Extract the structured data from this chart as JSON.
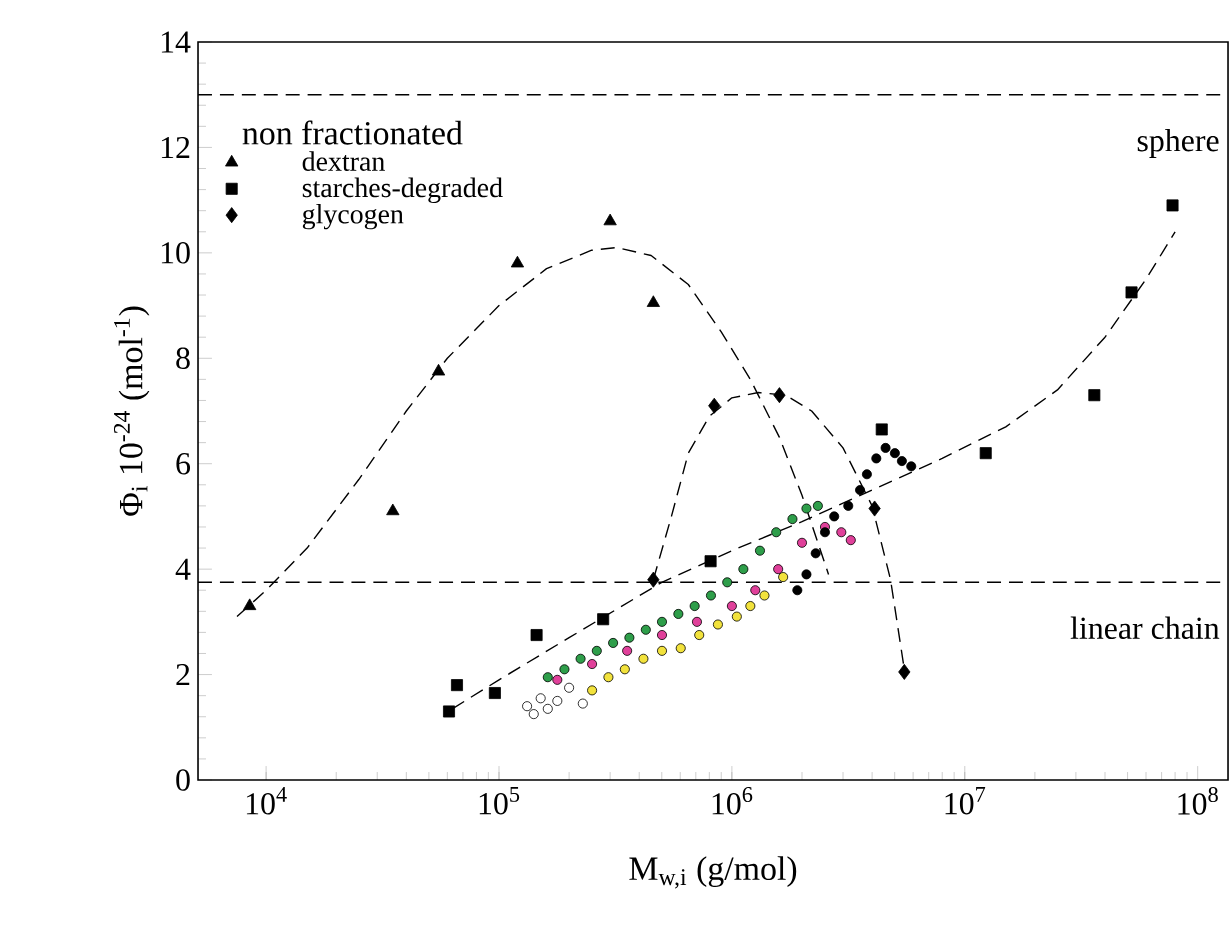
{
  "chart_data": {
    "type": "scatter",
    "xlabel": "M$_{w,i}$ (g/mol)",
    "ylabel": "Φ$_{i}$ 10$^{-24}$ (mol$^{-1}$)",
    "log": "x",
    "xlim": [
      5100,
      135000000
    ],
    "ylim": [
      0,
      14
    ],
    "xticks": [
      {
        "value": 10000,
        "label": "10$^{4}$"
      },
      {
        "value": 100000,
        "label": "10$^{5}$"
      },
      {
        "value": 1000000,
        "label": "10$^{6}$"
      },
      {
        "value": 10000000,
        "label": "10$^{7}$"
      },
      {
        "value": 100000000,
        "label": "10$^{8}$"
      }
    ],
    "yticks": [
      0,
      2,
      4,
      6,
      8,
      10,
      12,
      14
    ],
    "legend": "top left",
    "legend_title": "non fractionated",
    "ref_lines": [
      {
        "axis": "y",
        "value": 13,
        "label": "sphere",
        "color": "#000000",
        "line_style": "dashed"
      },
      {
        "axis": "y",
        "value": 3.75,
        "label": "linear chain",
        "color": "#000000",
        "line_style": "dashed"
      }
    ],
    "series": [
      {
        "type": "line",
        "color": "#000000",
        "line_style": "dashed",
        "marker": "none",
        "x": [
          7500,
          10000,
          15000,
          25000,
          40000,
          60000,
          100000,
          160000,
          250000,
          320000,
          450000,
          650000,
          900000,
          1200000,
          1600000,
          2000000,
          2600000
        ],
        "values": [
          3.1,
          3.6,
          4.4,
          5.7,
          7.0,
          8.0,
          9.0,
          9.7,
          10.05,
          10.1,
          9.95,
          9.4,
          8.5,
          7.6,
          6.5,
          5.4,
          3.9
        ]
      },
      {
        "type": "line",
        "color": "#000000",
        "line_style": "dashed",
        "marker": "none",
        "x": [
          460000,
          550000,
          650000,
          800000,
          1000000,
          1300000,
          1700000,
          2200000,
          3000000,
          4000000,
          4800000,
          5500000
        ],
        "values": [
          3.8,
          5.0,
          6.2,
          6.9,
          7.25,
          7.35,
          7.3,
          7.0,
          6.3,
          5.2,
          3.8,
          2.1
        ]
      },
      {
        "type": "line",
        "color": "#000000",
        "line_style": "dashed",
        "marker": "none",
        "x": [
          63000,
          100000,
          200000,
          500000,
          1000000,
          2000000,
          4000000,
          8000000,
          15000000,
          25000000,
          40000000,
          60000000,
          80000000
        ],
        "values": [
          1.35,
          1.9,
          2.7,
          3.75,
          4.35,
          4.9,
          5.5,
          6.1,
          6.7,
          7.4,
          8.4,
          9.5,
          10.4
        ]
      },
      {
        "marker": "circle",
        "color": "#ffffff",
        "x": [
          132000,
          141000,
          151000,
          162000,
          178000,
          200000,
          229000
        ],
        "values": [
          1.4,
          1.25,
          1.55,
          1.35,
          1.5,
          1.75,
          1.45
        ]
      },
      {
        "marker": "circle",
        "color": "#f2e23c",
        "x": [
          251000,
          295000,
          347000,
          417000,
          501000,
          603000,
          724000,
          871000,
          1050000,
          1200000,
          1380000,
          1660000
        ],
        "values": [
          1.7,
          1.95,
          2.1,
          2.3,
          2.45,
          2.5,
          2.75,
          2.95,
          3.1,
          3.3,
          3.5,
          3.85
        ]
      },
      {
        "marker": "circle",
        "color": "#e0409a",
        "x": [
          178000,
          251000,
          355000,
          501000,
          708000,
          1000000,
          1260000,
          1580000,
          2000000,
          2510000,
          2950000,
          3240000
        ],
        "values": [
          1.9,
          2.2,
          2.45,
          2.75,
          3.0,
          3.3,
          3.6,
          4.0,
          4.5,
          4.8,
          4.7,
          4.55
        ]
      },
      {
        "marker": "circle",
        "color": "#2e9e4a",
        "x": [
          162000,
          191000,
          224000,
          263000,
          309000,
          363000,
          427000,
          501000,
          589000,
          692000,
          813000,
          955000,
          1120000,
          1320000,
          1550000,
          1820000,
          2090000,
          2340000
        ],
        "values": [
          1.95,
          2.1,
          2.3,
          2.45,
          2.6,
          2.7,
          2.85,
          3.0,
          3.15,
          3.3,
          3.5,
          3.75,
          4.0,
          4.35,
          4.7,
          4.95,
          5.15,
          5.2
        ]
      },
      {
        "marker": "circle",
        "color": "#000000",
        "x": [
          1910000,
          2090000,
          2290000,
          2510000,
          2750000,
          3160000,
          3550000,
          3800000,
          4170000,
          4570000,
          5010000,
          5370000,
          5890000
        ],
        "values": [
          3.6,
          3.9,
          4.3,
          4.7,
          5.0,
          5.2,
          5.5,
          5.8,
          6.1,
          6.3,
          6.2,
          6.05,
          5.95
        ]
      },
      {
        "name": "dextran",
        "marker": "triangle",
        "color": "#000000",
        "x": [
          8500,
          35000,
          55000,
          120000,
          300000,
          460000
        ],
        "values": [
          3.3,
          5.1,
          7.75,
          9.8,
          10.6,
          9.05
        ]
      },
      {
        "name": "starches-degraded",
        "marker": "square",
        "color": "#000000",
        "x": [
          61000,
          66000,
          96000,
          145000,
          280000,
          810000,
          4400000,
          12300000,
          36000000,
          52000000,
          78000000
        ],
        "values": [
          1.3,
          1.8,
          1.65,
          2.75,
          3.05,
          4.15,
          6.65,
          6.2,
          7.3,
          9.25,
          10.9
        ]
      },
      {
        "name": "glycogen",
        "marker": "diamond",
        "color": "#000000",
        "x": [
          460000,
          840000,
          1600000,
          4100000,
          5500000
        ],
        "values": [
          3.8,
          7.1,
          7.3,
          5.15,
          2.05
        ]
      }
    ]
  }
}
